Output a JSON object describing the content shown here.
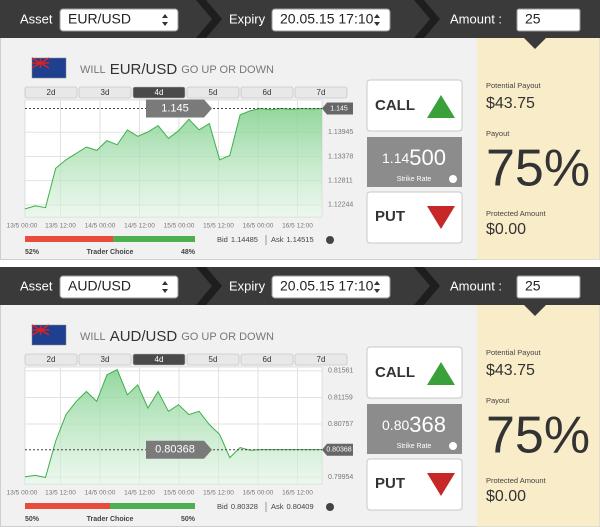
{
  "panels": [
    {
      "header": {
        "asset_label": "Asset",
        "asset": "EUR/USD",
        "expiry_label": "Expiry",
        "expiry": "20.05.15 17:10",
        "amount_label": "Amount :",
        "amount": "25"
      },
      "question": {
        "prefix": "WILL",
        "suffix": "GO UP OR DOWN"
      },
      "tabs": [
        "2d",
        "3d",
        "4d",
        "5d",
        "6d",
        "7d"
      ],
      "active_tab": 2,
      "chart": {
        "type": "area",
        "color": "#3cb04a",
        "grid": true,
        "xtick_labels": [
          "13/5 00:00",
          "13/5 12:00",
          "14/5 00:00",
          "14/5 12:00",
          "15/5 00:00",
          "15/5 12:00",
          "16/5 00:00",
          "16/5 12:00"
        ],
        "values": [
          1.1215,
          1.1222,
          1.1218,
          1.131,
          1.133,
          1.1345,
          1.136,
          1.1352,
          1.1375,
          1.1365,
          1.14,
          1.1385,
          1.1395,
          1.141,
          1.138,
          1.1398,
          1.1425,
          1.14,
          1.1415,
          1.133,
          1.134,
          1.1435,
          1.1445,
          1.145,
          1.1447,
          1.145,
          1.1448,
          1.145,
          1.1449,
          1.145
        ],
        "ylim": [
          1.1196,
          1.147
        ],
        "yticks": [
          1.13945,
          1.13378,
          1.12811,
          1.12244
        ],
        "current_price": 1.145
      },
      "trader_choice": {
        "label": "Trader Choice",
        "put_pct": 52,
        "put_label": "52%",
        "call_pct": 48,
        "call_label": "48%"
      },
      "bid_label": "Bid",
      "bid": 1.14485,
      "ask_label": "Ask",
      "ask": 1.14515,
      "call": "CALL",
      "put": "PUT",
      "strike": {
        "main": "1.14",
        "pips": "500",
        "label": "Strike Rate"
      },
      "payout": {
        "potential_label": "Potential Payout",
        "potential": "$43.75",
        "payout_label": "Payout",
        "payout": "75%",
        "protected_label": "Protected Amount",
        "protected": "$0.00"
      }
    },
    {
      "header": {
        "asset_label": "Asset",
        "asset": "AUD/USD",
        "expiry_label": "Expiry",
        "expiry": "20.05.15 17:10",
        "amount_label": "Amount :",
        "amount": "25"
      },
      "question": {
        "prefix": "WILL",
        "suffix": "GO UP OR DOWN"
      },
      "tabs": [
        "2d",
        "3d",
        "4d",
        "5d",
        "6d",
        "7d"
      ],
      "active_tab": 2,
      "chart": {
        "type": "area",
        "color": "#3cb04a",
        "grid": true,
        "xtick_labels": [
          "13/5 00:00",
          "13/5 12:00",
          "14/5 00:00",
          "14/5 12:00",
          "15/5 00:00",
          "15/5 12:00",
          "16/5 00:00",
          "16/5 12:00"
        ],
        "values": [
          0.7996,
          0.7998,
          0.7995,
          0.805,
          0.809,
          0.811,
          0.8125,
          0.811,
          0.815,
          0.8158,
          0.812,
          0.8135,
          0.81,
          0.8125,
          0.8095,
          0.8105,
          0.809,
          0.8095,
          0.8075,
          0.806,
          0.8025,
          0.804,
          0.8036,
          0.8037,
          0.8037,
          0.8037,
          0.8037,
          0.8037,
          0.8037,
          0.8037
        ],
        "ylim": [
          0.7985,
          0.8162
        ],
        "yticks": [
          0.81561,
          0.81159,
          0.80757,
          0.79954
        ],
        "current_price": 0.80368
      },
      "trader_choice": {
        "label": "Trader Choice",
        "put_pct": 50,
        "put_label": "50%",
        "call_pct": 50,
        "call_label": "50%"
      },
      "bid_label": "Bid",
      "bid": 0.80328,
      "ask_label": "Ask",
      "ask": 0.80409,
      "call": "CALL",
      "put": "PUT",
      "strike": {
        "main": "0.80",
        "pips": "368",
        "label": "Strike Rate"
      },
      "payout": {
        "potential_label": "Potential Payout",
        "potential": "$43.75",
        "payout_label": "Payout",
        "payout": "75%",
        "protected_label": "Protected Amount",
        "protected": "$0.00"
      }
    }
  ]
}
